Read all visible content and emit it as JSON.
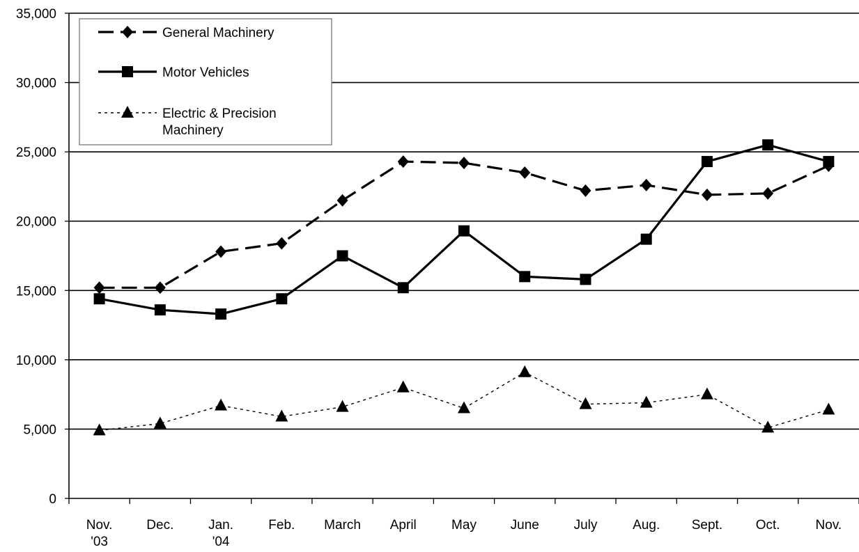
{
  "chart_data": {
    "type": "line",
    "title": "",
    "xlabel": "",
    "ylabel": "",
    "categories": [
      [
        "Nov.",
        "'03"
      ],
      [
        "Dec."
      ],
      [
        "Jan.",
        "'04"
      ],
      [
        "Feb."
      ],
      [
        "March"
      ],
      [
        "April"
      ],
      [
        "May"
      ],
      [
        "June"
      ],
      [
        "July"
      ],
      [
        "Aug."
      ],
      [
        "Sept."
      ],
      [
        "Oct."
      ],
      [
        "Nov."
      ]
    ],
    "ylim": [
      0,
      35000
    ],
    "yticks": [
      0,
      5000,
      10000,
      15000,
      20000,
      25000,
      30000,
      35000
    ],
    "ytick_labels": [
      "0",
      "5,000",
      "10,000",
      "15,000",
      "20,000",
      "25,000",
      "30,000",
      "35,000"
    ],
    "grid": "horizontal",
    "legend_position": "top-left",
    "series": [
      {
        "name": "General Machinery",
        "style": "dashed",
        "marker": "diamond",
        "color": "#000000",
        "values": [
          15200,
          15200,
          17800,
          18400,
          21500,
          24300,
          24200,
          23500,
          22200,
          22600,
          21900,
          22000,
          24000
        ]
      },
      {
        "name": "Motor Vehicles",
        "style": "solid",
        "marker": "square",
        "color": "#000000",
        "values": [
          14400,
          13600,
          13300,
          14400,
          17500,
          15200,
          19300,
          16000,
          15800,
          18700,
          24300,
          25500,
          24300
        ]
      },
      {
        "name": "Electric & Precision Machinery",
        "legend_lines": [
          "Electric & Precision",
          "Machinery"
        ],
        "style": "dotted",
        "marker": "triangle",
        "color": "#000000",
        "values": [
          4900,
          5400,
          6700,
          5900,
          6600,
          8000,
          6500,
          9100,
          6800,
          6900,
          7500,
          5100,
          6400
        ]
      }
    ]
  }
}
